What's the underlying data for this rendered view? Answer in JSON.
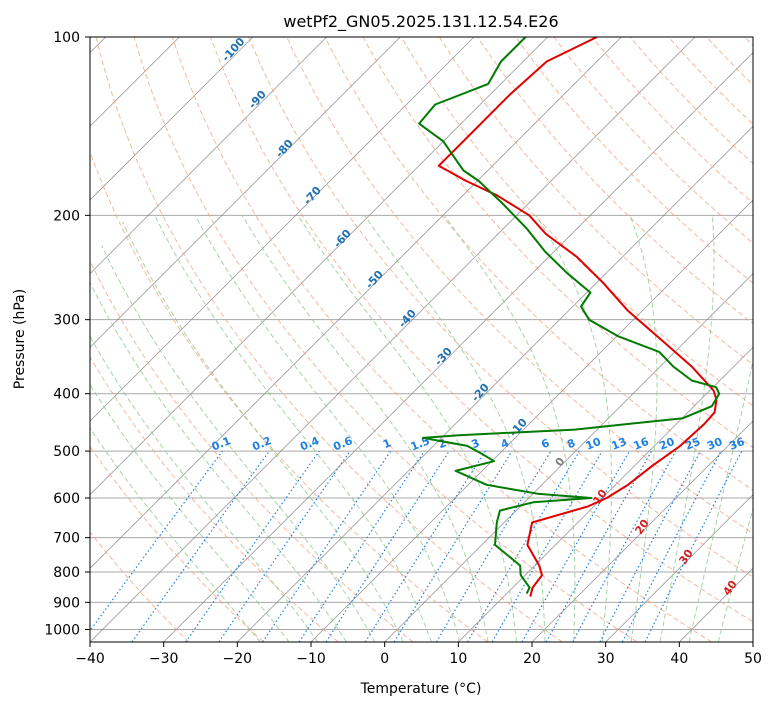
{
  "chart_data": {
    "type": "line",
    "subtype": "skew-t log-p diagram",
    "title": "wetPf2_GN05.2025.131.12.54.E26",
    "xlabel": "Temperature (°C)",
    "ylabel": "Pressure (hPa)",
    "xlim": [
      -40,
      50
    ],
    "ylim": [
      1050,
      100
    ],
    "y_scale": "log",
    "skew_note": "isotherms skewed 45°",
    "x_ticks": [
      -40,
      -30,
      -20,
      -10,
      0,
      10,
      20,
      30,
      40,
      50
    ],
    "y_ticks": [
      100,
      200,
      300,
      400,
      500,
      600,
      700,
      800,
      900,
      1000
    ],
    "grid": true,
    "series": [
      {
        "color": "#e00000",
        "pressure": [
          880,
          850,
          810,
          780,
          720,
          660,
          620,
          600,
          570,
          530,
          490,
          450,
          430,
          410,
          395,
          360,
          320,
          290,
          260,
          235,
          215,
          200,
          185,
          175,
          165,
          155,
          140,
          125,
          110,
          100
        ],
        "temperature": [
          13.6,
          12.7,
          12.3,
          10.6,
          6.2,
          3.8,
          9.2,
          10.6,
          11.7,
          12.4,
          13.5,
          13.8,
          13.6,
          12.2,
          10.5,
          4.3,
          -4.5,
          -11.9,
          -19.1,
          -26.2,
          -33.5,
          -38.3,
          -45.4,
          -51.5,
          -57.3,
          -57.3,
          -57.3,
          -57.3,
          -56.8,
          -53.3
        ]
      },
      {
        "color": "#007a00",
        "pressure": [
          870,
          850,
          810,
          780,
          720,
          660,
          630,
          610,
          600,
          590,
          570,
          540,
          520,
          505,
          490,
          475,
          470,
          460,
          440,
          420,
          400,
          390,
          380,
          360,
          340,
          320,
          300,
          285,
          270,
          250,
          230,
          210,
          190,
          175,
          168,
          160,
          150,
          140,
          130,
          120,
          110,
          100
        ],
        "temperature": [
          12.7,
          12.3,
          9.4,
          8.0,
          1.8,
          -1.0,
          -2.2,
          1.2,
          8.5,
          0.6,
          -7.5,
          -13.6,
          -9.7,
          -12.4,
          -15.4,
          -22.5,
          -18.0,
          -3.0,
          10.1,
          12.4,
          11.7,
          10.4,
          6.2,
          1.8,
          -2.1,
          -9.8,
          -16.0,
          -18.9,
          -19.5,
          -25.4,
          -31.3,
          -37.0,
          -43.9,
          -49.8,
          -53.3,
          -56.2,
          -60.0,
          -65.7,
          -66.1,
          -61.7,
          -63.0,
          -63.0
        ]
      }
    ],
    "dry_adiabat_labels": [
      "-100",
      "-90",
      "-80",
      "-70",
      "-60",
      "-50",
      "-40",
      "-30",
      "-20",
      "-10"
    ],
    "mixing_ratio_labels": [
      "0.1",
      "0.2",
      "0.4",
      "0.6",
      "1",
      "1.5",
      "2",
      "3",
      "4",
      "6",
      "8",
      "10",
      "13",
      "16",
      "20",
      "25",
      "30",
      "36"
    ],
    "moist_adiabat_labels": [
      "0",
      "10",
      "20",
      "30",
      "40"
    ],
    "colors": {
      "temperature": "#e00000",
      "dewpoint": "#007a00",
      "dry_adiabat": "#f0a080",
      "moist_adiabat": "#90c890",
      "mixing_ratio": "#2080e0",
      "dry_label": "#2070b0",
      "moist_label": "#d02020",
      "isotherm": "#7f7f7f",
      "isobar": "#a8a8a8"
    }
  }
}
